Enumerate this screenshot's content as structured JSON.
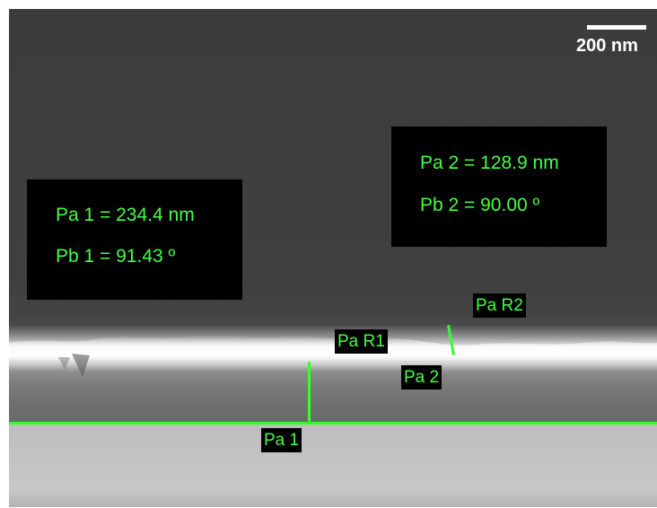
{
  "image": {
    "scale_bar_label": "200 nm",
    "measurement_box_1": {
      "line_1": "Pa 1 = 234.4 nm",
      "line_2": "Pb 1 = 91.43 º"
    },
    "measurement_box_2": {
      "line_1": "Pa 2 = 128.9 nm",
      "line_2": "Pb 2 = 90.00 º"
    },
    "tags": {
      "pa1": "Pa 1",
      "pa2": "Pa 2",
      "pa_r1": "Pa R1",
      "pa_r2": "Pa R2"
    },
    "colors": {
      "measurement_green": "#43ff43",
      "background_dark": "#3e3e3e",
      "film_highlight": "#ffffff",
      "substrate": "#c2c2c2"
    }
  }
}
